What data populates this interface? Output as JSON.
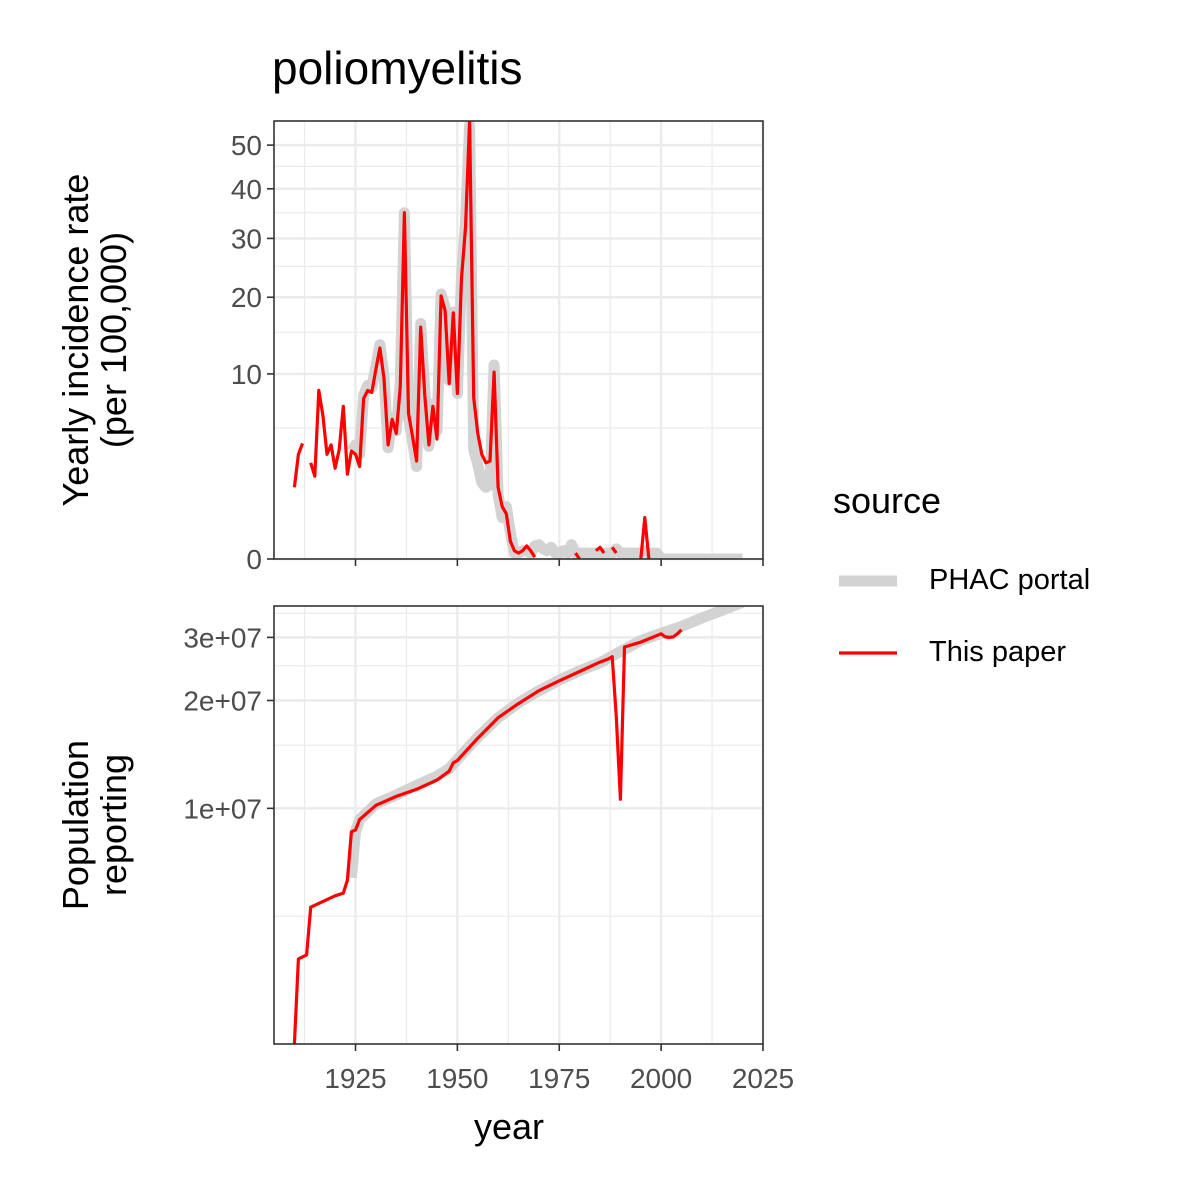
{
  "title": "poliomyelitis",
  "x_axis": {
    "label": "year",
    "ticks": [
      1925,
      1950,
      1975,
      2000,
      2025
    ]
  },
  "legend": {
    "title": "source",
    "entries": [
      {
        "label": "PHAC portal",
        "color": "#d3d3d3"
      },
      {
        "label": "This paper",
        "color": "#ff0000"
      }
    ]
  },
  "chart_data": [
    {
      "type": "line",
      "panel": "incidence",
      "ylabel_lines": [
        "Yearly incidence rate",
        "(per 100,000)"
      ],
      "y_scale": "sqrt",
      "y_ticks": [
        0,
        10,
        20,
        30,
        40,
        50
      ],
      "xlim": [
        1905,
        2025
      ],
      "ylim": [
        0,
        56
      ],
      "series": [
        {
          "name": "PHAC portal",
          "x": [
            1924,
            1925,
            1926,
            1927,
            1928,
            1929,
            1930,
            1931,
            1932,
            1933,
            1934,
            1935,
            1936,
            1937,
            1938,
            1939,
            1940,
            1941,
            1942,
            1943,
            1944,
            1945,
            1946,
            1947,
            1948,
            1949,
            1950,
            1951,
            1952,
            1953,
            1954,
            1955,
            1956,
            1957,
            1958,
            1959,
            1960,
            1961,
            1962,
            1963,
            1964,
            1965,
            1966,
            1967,
            1968,
            1969,
            1970,
            1971,
            1972,
            1973,
            1974,
            1975,
            1976,
            1977,
            1978,
            1979,
            1980,
            1981,
            1982,
            1983,
            1984,
            1985,
            1986,
            1987,
            1988,
            1989,
            1990,
            1991,
            1992,
            1993,
            1994,
            1995,
            1996,
            1997,
            1998,
            1999,
            2000,
            2005,
            2010,
            2015,
            2020
          ],
          "y": [
            3.4,
            3.8,
            3.2,
            7.8,
            8.8,
            8.6,
            10.8,
            13.4,
            9.8,
            3.6,
            5.8,
            4.8,
            9.2,
            35.0,
            5.8,
            4.1,
            2.5,
            16.2,
            8.2,
            3.7,
            7.0,
            4.8,
            20.5,
            18.5,
            9.3,
            17.8,
            8.0,
            23.5,
            33.0,
            55.0,
            3.5,
            2.6,
            1.7,
            1.5,
            1.6,
            11.0,
            1.2,
            0.5,
            0.8,
            0.2,
            0.01,
            0.01,
            0.02,
            0.02,
            0.01,
            0.05,
            0.06,
            0.03,
            0.02,
            0.04,
            0.01,
            0.01,
            0.02,
            0.01,
            0.06,
            0.01,
            0.01,
            0.01,
            0.01,
            0.01,
            0.01,
            0.01,
            0.01,
            0.01,
            0.01,
            0.03,
            0.01,
            0.01,
            0.01,
            0.01,
            0.01,
            0.01,
            0.02,
            0.01,
            0.01,
            0.01,
            0,
            0,
            0,
            0,
            0
          ]
        },
        {
          "name": "This paper",
          "segments": [
            {
              "x": [
                1910,
                1911,
                1912
              ],
              "y": [
                1.5,
                3.2,
                3.9
              ]
            },
            {
              "x": [
                1914,
                1915,
                1916,
                1917,
                1918,
                1919,
                1920,
                1921,
                1922,
                1923,
                1924,
                1925,
                1926,
                1927,
                1928,
                1929,
                1930,
                1931,
                1932,
                1933,
                1934,
                1935,
                1936,
                1937,
                1938,
                1939,
                1940,
                1941,
                1942,
                1943,
                1944,
                1945,
                1946,
                1947,
                1948,
                1949,
                1950,
                1951,
                1952,
                1953,
                1954,
                1955,
                1956,
                1957,
                1958,
                1959,
                1960,
                1961,
                1962,
                1963,
                1964,
                1965,
                1966,
                1967,
                1968,
                1969
              ],
              "y": [
                2.7,
                2.0,
                8.3,
                6.0,
                3.2,
                3.8,
                2.4,
                3.5,
                6.8,
                2.1,
                3.4,
                3.2,
                2.5,
                7.5,
                8.3,
                8.1,
                10.5,
                13.0,
                9.5,
                3.8,
                5.7,
                4.6,
                8.7,
                35.0,
                6.2,
                4.4,
                2.8,
                15.7,
                7.8,
                3.8,
                6.8,
                4.2,
                20.2,
                18.0,
                9.0,
                17.7,
                8.0,
                23.0,
                32.0,
                56.0,
                7.6,
                4.6,
                3.2,
                2.7,
                2.8,
                10.2,
                1.5,
                0.8,
                0.6,
                0.09,
                0.02,
                0.01,
                0.02,
                0.05,
                0.02,
                0.001
              ]
            },
            {
              "x": [
                1979,
                1980
              ],
              "y": [
                0.01,
                0
              ]
            },
            {
              "x": [
                1984,
                1985,
                1986
              ],
              "y": [
                0.02,
                0.04,
                0.01
              ]
            },
            {
              "x": [
                1988,
                1989
              ],
              "y": [
                0.04,
                0.01
              ]
            },
            {
              "x": [
                1995,
                1996,
                1997
              ],
              "y": [
                0,
                0.5,
                0
              ]
            }
          ]
        }
      ]
    },
    {
      "type": "line",
      "panel": "population",
      "ylabel_lines": [
        "Population",
        "reporting"
      ],
      "y_scale": "log10",
      "y_ticks": [
        "1e+07",
        "2e+07",
        "3e+07"
      ],
      "y_tick_values": [
        10000000,
        20000000,
        30000000
      ],
      "xlim": [
        1905,
        2025
      ],
      "ylim": [
        2200000,
        36700000
      ],
      "series": [
        {
          "name": "PHAC portal",
          "x": [
            1924,
            1925,
            1926,
            1930,
            1935,
            1940,
            1945,
            1948,
            1950,
            1955,
            1960,
            1965,
            1970,
            1975,
            1980,
            1985,
            1990,
            1995,
            2000,
            2005,
            2010,
            2015,
            2020
          ],
          "y": [
            6400000,
            8600000,
            9300000,
            10300000,
            10900000,
            11600000,
            12300000,
            12900000,
            13700000,
            15800000,
            17900000,
            19700000,
            21300000,
            22800000,
            24200000,
            25500000,
            27400000,
            29400000,
            30800000,
            32200000,
            34000000,
            35700000,
            37600000
          ]
        },
        {
          "name": "This paper",
          "x": [
            1910,
            1911,
            1913,
            1914,
            1920,
            1922,
            1923,
            1924,
            1925,
            1926,
            1930,
            1935,
            1940,
            1945,
            1948,
            1949,
            1950,
            1955,
            1960,
            1965,
            1970,
            1975,
            1980,
            1985,
            1987,
            1988,
            1989,
            1990,
            1991,
            1995,
            2000,
            2001,
            2002,
            2003,
            2004,
            2005
          ],
          "y": [
            2200000,
            3800000,
            3900000,
            5300000,
            5700000,
            5800000,
            6300000,
            8600000,
            8700000,
            9300000,
            10200000,
            10800000,
            11300000,
            12000000,
            12700000,
            13400000,
            13600000,
            15700000,
            17900000,
            19600000,
            21300000,
            22700000,
            24100000,
            25600000,
            26100000,
            26500000,
            18000000,
            10600000,
            28200000,
            29100000,
            30700000,
            30100000,
            30000000,
            30100000,
            30700000,
            31500000
          ]
        }
      ]
    }
  ]
}
